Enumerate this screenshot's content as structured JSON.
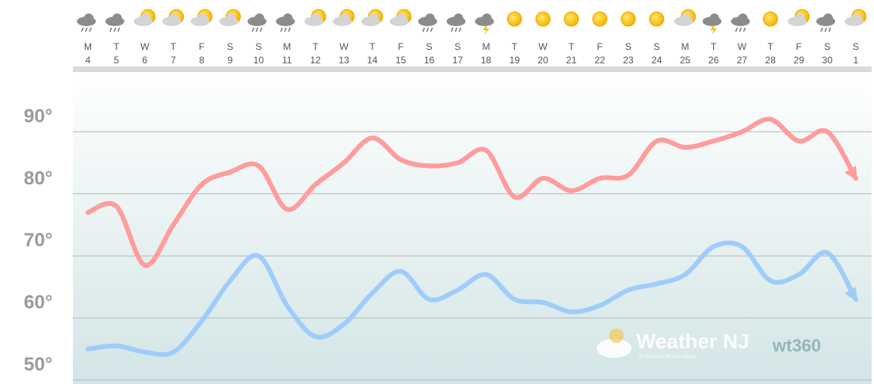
{
  "chart_data": {
    "type": "line",
    "categories": [
      "M",
      "T",
      "W",
      "T",
      "F",
      "S",
      "S",
      "M",
      "T",
      "W",
      "T",
      "F",
      "S",
      "S",
      "M",
      "T",
      "W",
      "T",
      "F",
      "S",
      "S",
      "M",
      "T",
      "W",
      "T",
      "F",
      "S",
      "S"
    ],
    "dates": [
      4,
      5,
      6,
      7,
      8,
      9,
      10,
      11,
      12,
      13,
      14,
      15,
      16,
      17,
      18,
      19,
      20,
      21,
      22,
      23,
      24,
      25,
      26,
      27,
      28,
      29,
      30,
      1
    ],
    "series": [
      {
        "color": "#ff9c9c",
        "values": [
          77,
          78,
          68.5,
          75,
          81.5,
          83.5,
          84.5,
          77.5,
          81.5,
          85,
          89,
          85.5,
          84.5,
          85,
          87,
          79.5,
          82.5,
          80.5,
          82.5,
          83,
          88.5,
          87.5,
          88.5,
          90,
          92,
          88.5,
          90,
          82.5
        ]
      },
      {
        "color": "#9fcdfa",
        "values": [
          55,
          55.5,
          54.5,
          54.5,
          59.5,
          66,
          70,
          62,
          57,
          59,
          64,
          67.5,
          63,
          64.5,
          67,
          63,
          62.5,
          61,
          62,
          64.5,
          65.5,
          67,
          71.5,
          71.5,
          66,
          67,
          70.5,
          63
        ]
      }
    ],
    "ylim": [
      50,
      100
    ],
    "yticks": [
      {
        "value": 50,
        "label": "50°"
      },
      {
        "value": 60,
        "label": "60°"
      },
      {
        "value": 70,
        "label": "70°"
      },
      {
        "value": 80,
        "label": "80°"
      },
      {
        "value": 90,
        "label": "90°"
      }
    ],
    "grid": true,
    "watermark": {
      "brand": "Weather NJ",
      "tagline": "All Weather, All New Jersey",
      "logo": "wt360"
    }
  }
}
